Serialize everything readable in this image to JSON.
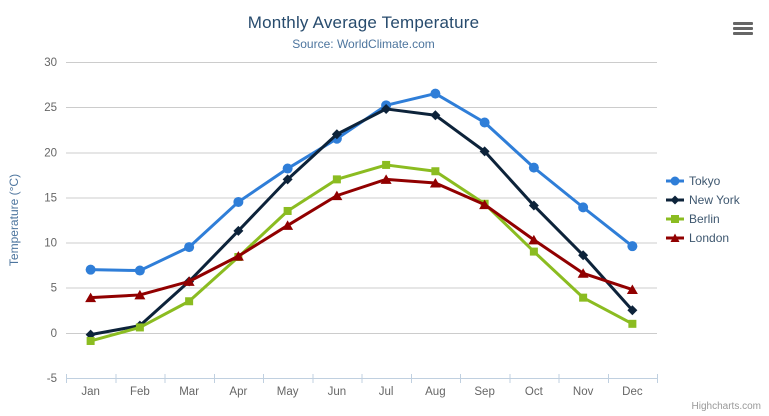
{
  "chart_data": {
    "type": "line",
    "title": "Monthly Average Temperature",
    "subtitle": "Source: WorldClimate.com",
    "ylabel": "Temperature (°C)",
    "xlabel": "",
    "categories": [
      "Jan",
      "Feb",
      "Mar",
      "Apr",
      "May",
      "Jun",
      "Jul",
      "Aug",
      "Sep",
      "Oct",
      "Nov",
      "Dec"
    ],
    "ylim": [
      -5,
      30
    ],
    "ytick_interval": 5,
    "grid": true,
    "legend_position": "right",
    "series": [
      {
        "name": "Tokyo",
        "color": "#2f7ed8",
        "marker": "circle",
        "values": [
          7.0,
          6.9,
          9.5,
          14.5,
          18.2,
          21.5,
          25.2,
          26.5,
          23.3,
          18.3,
          13.9,
          9.6
        ]
      },
      {
        "name": "New York",
        "color": "#0d233a",
        "marker": "diamond",
        "values": [
          -0.2,
          0.8,
          5.7,
          11.3,
          17.0,
          22.0,
          24.8,
          24.1,
          20.1,
          14.1,
          8.6,
          2.5
        ]
      },
      {
        "name": "Berlin",
        "color": "#8bbc21",
        "marker": "square",
        "values": [
          -0.9,
          0.6,
          3.5,
          8.4,
          13.5,
          17.0,
          18.6,
          17.9,
          14.3,
          9.0,
          3.9,
          1.0
        ]
      },
      {
        "name": "London",
        "color": "#910000",
        "marker": "triangle",
        "values": [
          3.9,
          4.2,
          5.7,
          8.5,
          11.9,
          15.2,
          17.0,
          16.6,
          14.2,
          10.3,
          6.6,
          4.8
        ]
      }
    ],
    "axis_colors": {
      "grid_line": "#cccccc",
      "axis_line": "#c0d0e0",
      "tick_label": "#666666"
    }
  },
  "export_menu": {
    "icon": "hamburger-icon"
  },
  "credits": {
    "label": "Highcharts.com"
  }
}
